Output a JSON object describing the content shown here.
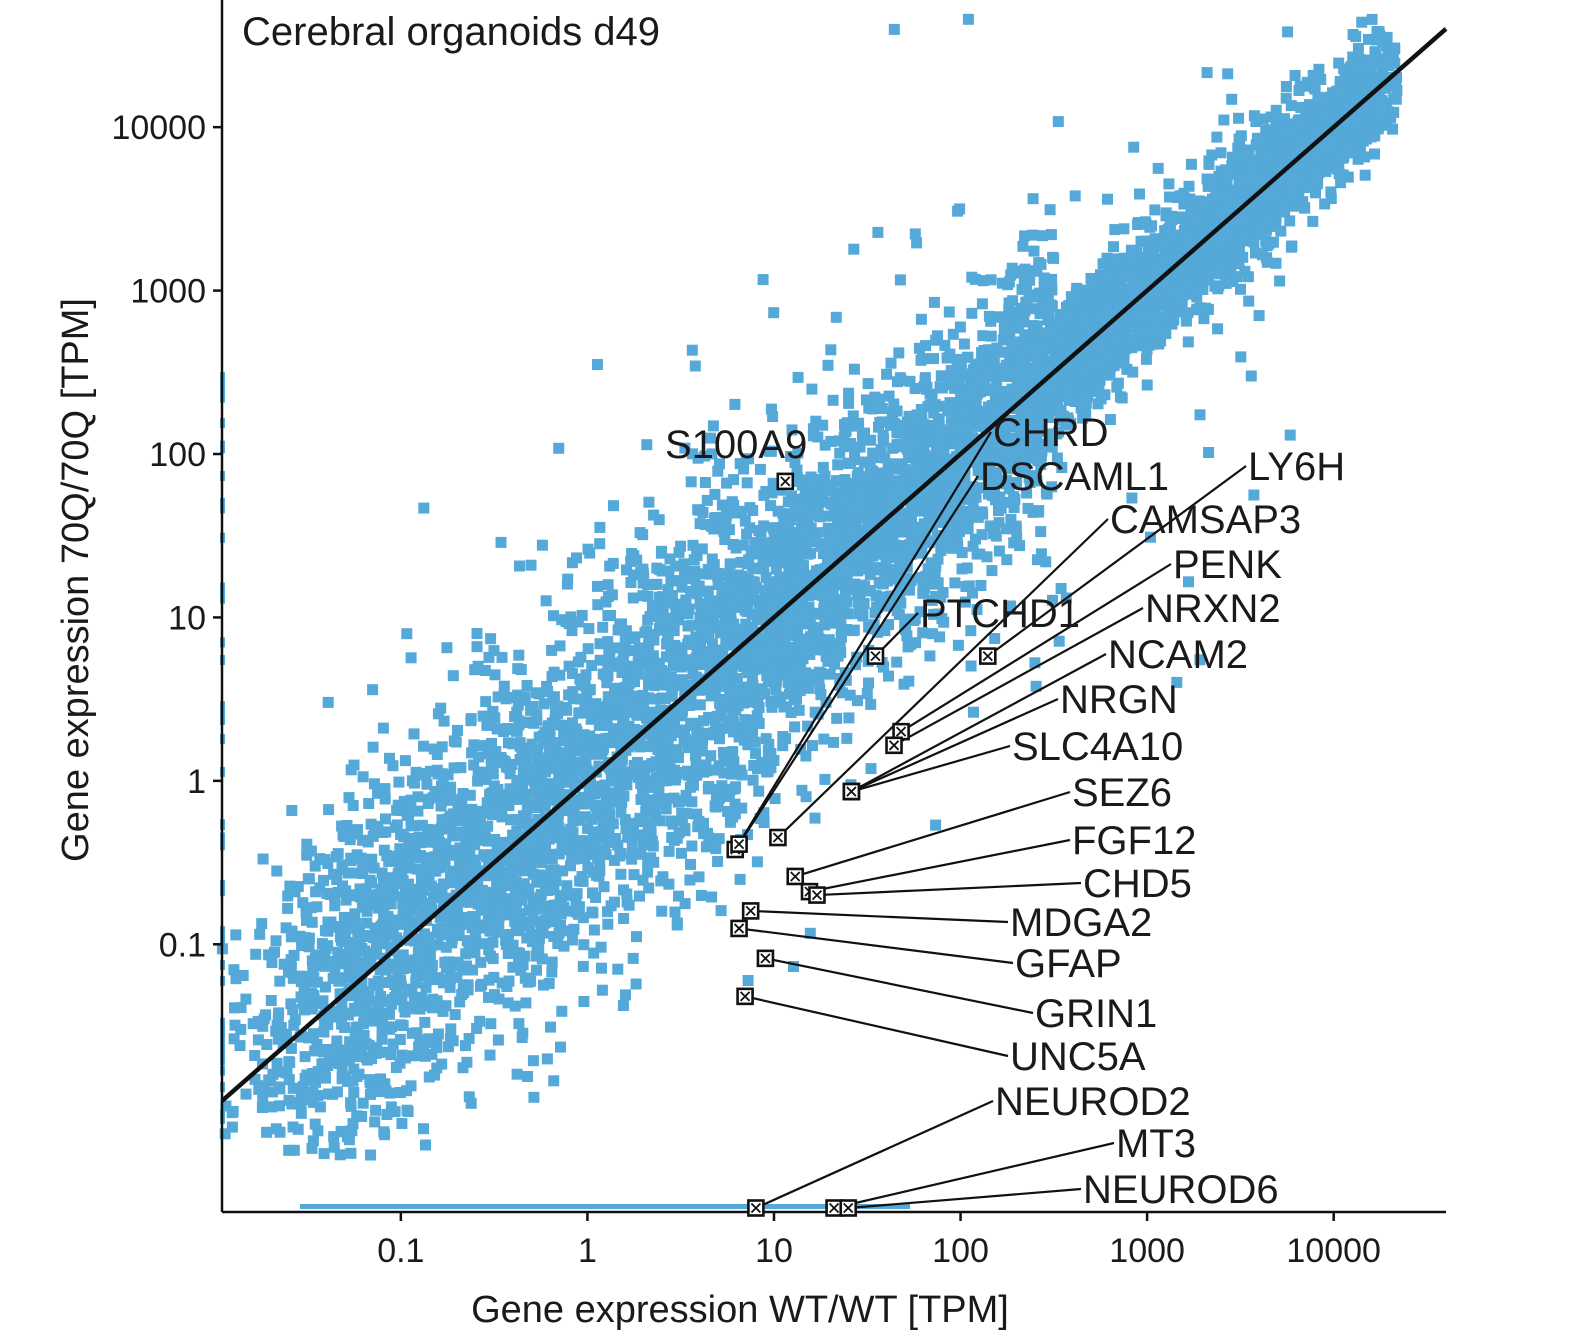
{
  "chart_data": {
    "type": "scatter",
    "title": "Cerebral organoids d49",
    "xlabel": "Gene expression WT/WT  [TPM]",
    "ylabel": "Gene expression 70Q/70Q  [TPM]",
    "scale": "log10",
    "xlim": [
      0.011,
      40000
    ],
    "ylim": [
      0.0023,
      60000
    ],
    "x_ticks": [
      {
        "value": 0.1,
        "label": "0.1"
      },
      {
        "value": 1,
        "label": "1"
      },
      {
        "value": 10,
        "label": "10"
      },
      {
        "value": 100,
        "label": "100"
      },
      {
        "value": 1000,
        "label": "1000"
      },
      {
        "value": 10000,
        "label": "10000"
      }
    ],
    "y_ticks": [
      {
        "value": 0.1,
        "label": "0.1"
      },
      {
        "value": 1,
        "label": "1"
      },
      {
        "value": 10,
        "label": "10"
      },
      {
        "value": 100,
        "label": "100"
      },
      {
        "value": 1000,
        "label": "1000"
      },
      {
        "value": 10000,
        "label": "10000"
      }
    ],
    "reference_line": "y = x",
    "background_series": {
      "name": "all genes",
      "color": "#55a9d8"
    },
    "highlighted_genes": [
      {
        "label": "S100A9",
        "x": 11.5,
        "y": 68
      },
      {
        "label": "CHRD",
        "x": 6.2,
        "y": 0.38
      },
      {
        "label": "DSCAML1",
        "x": 6.5,
        "y": 0.41
      },
      {
        "label": "PTCHD1",
        "x": 35,
        "y": 5.8
      },
      {
        "label": "LY6H",
        "x": 140,
        "y": 5.8
      },
      {
        "label": "CAMSAP3",
        "x": 10.5,
        "y": 0.45
      },
      {
        "label": "PENK",
        "x": 48,
        "y": 2.0
      },
      {
        "label": "NRXN2",
        "x": 44,
        "y": 1.65
      },
      {
        "label": "NCAM2",
        "x": 26,
        "y": 0.86
      },
      {
        "label": "NRGN",
        "x": 26,
        "y": 0.86
      },
      {
        "label": "SLC4A10",
        "x": 26,
        "y": 0.86
      },
      {
        "label": "SEZ6",
        "x": 13,
        "y": 0.26
      },
      {
        "label": "FGF12",
        "x": 15.5,
        "y": 0.21
      },
      {
        "label": "CHD5",
        "x": 17,
        "y": 0.2
      },
      {
        "label": "MDGA2",
        "x": 7.5,
        "y": 0.16
      },
      {
        "label": "GFAP",
        "x": 6.5,
        "y": 0.125
      },
      {
        "label": "GRIN1",
        "x": 9,
        "y": 0.082
      },
      {
        "label": "UNC5A",
        "x": 7,
        "y": 0.048
      },
      {
        "label": "NEUROD2",
        "x": 8,
        "y": 0.0023
      },
      {
        "label": "MT3",
        "x": 21,
        "y": 0.0023
      },
      {
        "label": "NEUROD6",
        "x": 25,
        "y": 0.0023
      }
    ]
  }
}
